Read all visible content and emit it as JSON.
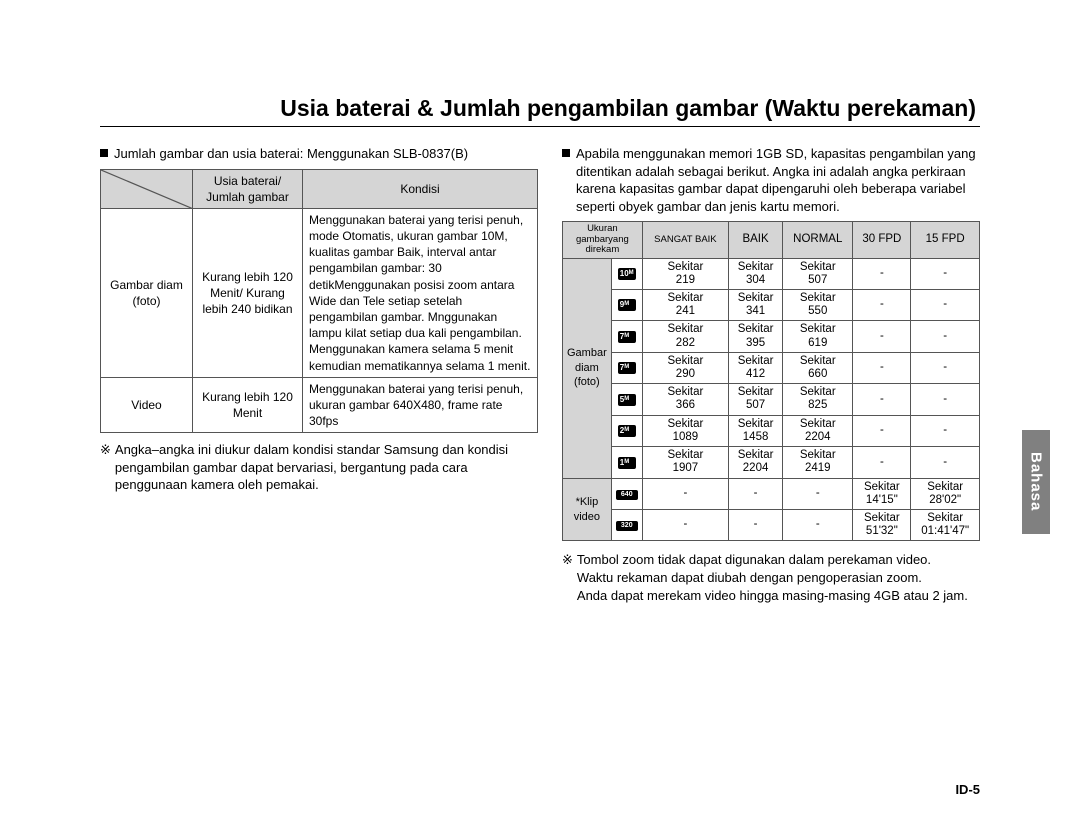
{
  "title": "Usia baterai & Jumlah pengambilan gambar (Waktu perekaman)",
  "side_tab": "Bahasa",
  "page_number": "ID-5",
  "left": {
    "lead": "Jumlah gambar dan usia baterai: Menggunakan SLB-0837(B)",
    "table": {
      "headers": {
        "col2": "Usia baterai/\nJumlah gambar",
        "col3": "Kondisi"
      },
      "rows": [
        {
          "label": "Gambar diam (foto)",
          "middle": "Kurang lebih 120 Menit/ Kurang lebih 240 bidikan",
          "cond": "Menggunakan baterai yang terisi penuh, mode Otomatis, ukuran gambar 10M, kualitas gambar Baik, interval antar pengambilan gambar: 30 detikMenggunakan posisi zoom antara Wide dan Tele setiap setelah pengambilan gambar. Mnggunakan lampu kilat setiap dua kali pengambilan. Menggunakan kamera selama 5 menit kemudian mematikannya selama 1 menit."
        },
        {
          "label": "Video",
          "middle": "Kurang lebih 120 Menit",
          "cond": "Menggunakan baterai yang terisi penuh, ukuran gambar 640X480, frame rate 30fps"
        }
      ]
    },
    "note": "Angka–angka ini diukur dalam kondisi standar Samsung dan kondisi pengambilan gambar dapat bervariasi, bergantung pada cara penggunaan kamera oleh pemakai."
  },
  "right": {
    "lead": "Apabila menggunakan memori 1GB SD, kapasitas pengambilan yang ditentikan adalah sebagai berikut. Angka ini adalah angka perkiraan karena kapasitas gambar dapat dipengaruhi oleh beberapa variabel seperti obyek gambar dan jenis kartu memori.",
    "table": {
      "headers": {
        "size": "Ukuran gambaryang direkam",
        "c1": "SANGAT BAIK",
        "c2": "BAIK",
        "c3": "NORMAL",
        "c4": "30 FPD",
        "c5": "15 FPD"
      },
      "photo_label": "Gambar diam (foto)",
      "video_label": "*Klip video",
      "photo_rows": [
        {
          "icon": "10",
          "sub": "M",
          "v": [
            "Sekitar 219",
            "Sekitar 304",
            "Sekitar 507",
            "-",
            "-"
          ]
        },
        {
          "icon": "9",
          "sub": "M",
          "v": [
            "Sekitar 241",
            "Sekitar 341",
            "Sekitar 550",
            "-",
            "-"
          ]
        },
        {
          "icon": "7",
          "sub": "M",
          "v": [
            "Sekitar 282",
            "Sekitar 395",
            "Sekitar 619",
            "-",
            "-"
          ]
        },
        {
          "icon": "7",
          "sub": "M",
          "v": [
            "Sekitar 290",
            "Sekitar 412",
            "Sekitar 660",
            "-",
            "-"
          ]
        },
        {
          "icon": "5",
          "sub": "M",
          "v": [
            "Sekitar 366",
            "Sekitar 507",
            "Sekitar 825",
            "-",
            "-"
          ]
        },
        {
          "icon": "2",
          "sub": "M",
          "v": [
            "Sekitar 1089",
            "Sekitar 1458",
            "Sekitar 2204",
            "-",
            "-"
          ]
        },
        {
          "icon": "1",
          "sub": "M",
          "v": [
            "Sekitar 1907",
            "Sekitar 2204",
            "Sekitar 2419",
            "-",
            "-"
          ]
        }
      ],
      "video_rows": [
        {
          "icon": "640",
          "v": [
            "-",
            "-",
            "-",
            "Sekitar 14'15\"",
            "Sekitar 28'02\""
          ]
        },
        {
          "icon": "320",
          "v": [
            "-",
            "-",
            "-",
            "Sekitar 51'32\"",
            "Sekitar 01:41'47\""
          ]
        }
      ]
    },
    "note_line1": "Tombol zoom tidak dapat digunakan dalam perekaman video.",
    "note_line2": "Waktu rekaman dapat diubah dengan pengoperasian zoom.",
    "note_line3": "Anda dapat merekam video hingga masing-masing 4GB atau 2 jam."
  }
}
